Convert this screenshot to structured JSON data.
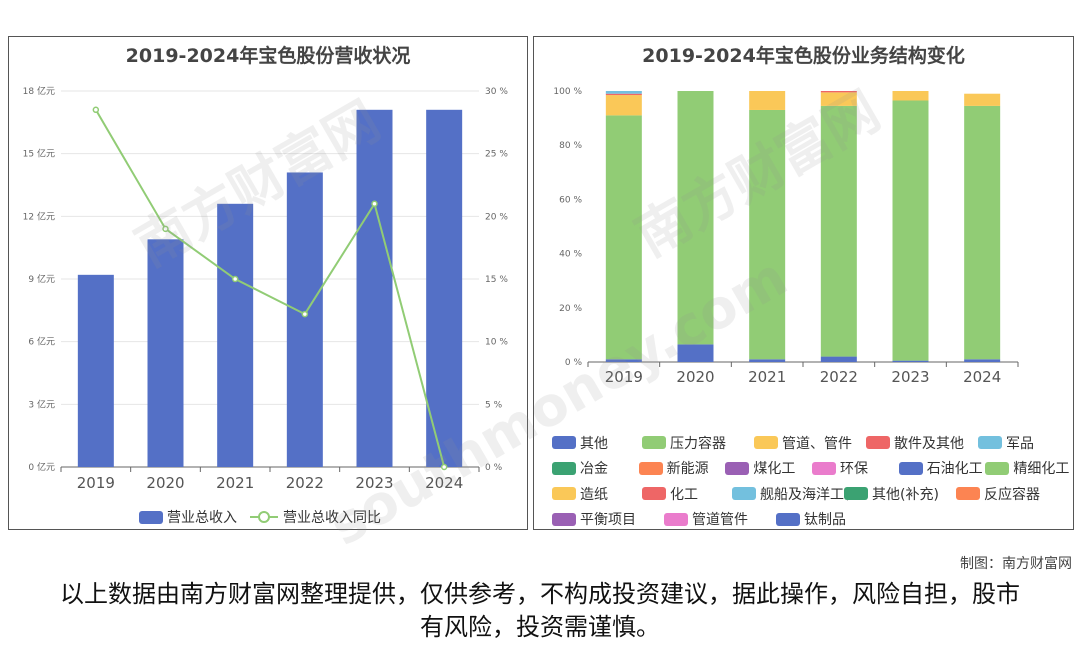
{
  "left_chart": {
    "title": "2019-2024年宝色股份营收状况",
    "legend": {
      "revenue": "营业总收入",
      "growth": "营业总收入同比"
    },
    "colors": {
      "bar": "#5470c6",
      "line": "#91cc75"
    }
  },
  "right_chart": {
    "title": "2019-2024年宝色股份业务结构变化",
    "legend_rows": [
      [
        {
          "name": "其他",
          "color": "#5470c6"
        },
        {
          "name": "压力容器",
          "color": "#91cc75",
          "w": 1
        },
        {
          "name": "管道、管件",
          "color": "#fac858",
          "w": 1
        },
        {
          "name": "散件及其他",
          "color": "#ee6666",
          "w": 1
        },
        {
          "name": "军品",
          "color": "#73c0de"
        }
      ],
      [
        {
          "name": "冶金",
          "color": "#3ba272"
        },
        {
          "name": "新能源",
          "color": "#fc8452"
        },
        {
          "name": "煤化工",
          "color": "#9a60b4"
        },
        {
          "name": "环保",
          "color": "#ea7ccc"
        },
        {
          "name": "石油化工",
          "color": "#5470c6"
        },
        {
          "name": "精细化工",
          "color": "#91cc75"
        }
      ],
      [
        {
          "name": "造纸",
          "color": "#fac858"
        },
        {
          "name": "化工",
          "color": "#ee6666"
        },
        {
          "name": "舰船及海洋工程",
          "color": "#73c0de",
          "w": 1
        },
        {
          "name": "其他(补充)",
          "color": "#3ba272",
          "w": 1
        },
        {
          "name": "反应容器",
          "color": "#fc8452"
        }
      ],
      [
        {
          "name": "平衡项目",
          "color": "#9a60b4",
          "w": 1
        },
        {
          "name": "管道管件",
          "color": "#ea7ccc",
          "w": 1
        },
        {
          "name": "钛制品",
          "color": "#5470c6"
        }
      ]
    ]
  },
  "credit": "制图：南方财富网",
  "footer": "以上数据由南方财富网整理提供，仅供参考，不构成投资建议，据此操作，风险自担，股市有风险，投资需谨慎。",
  "watermark": [
    "南方财富网",
    "southmoney.com"
  ],
  "chart_data": [
    {
      "type": "bar",
      "title": "2019-2024年宝色股份营收状况",
      "categories": [
        "2019",
        "2020",
        "2021",
        "2022",
        "2023",
        "2024"
      ],
      "series": [
        {
          "name": "营业总收入",
          "type": "bar",
          "axis": "left",
          "values": [
            9.2,
            10.9,
            12.6,
            14.1,
            17.1,
            17.1
          ]
        },
        {
          "name": "营业总收入同比",
          "type": "line",
          "axis": "right",
          "values": [
            28.5,
            19.0,
            15.0,
            12.2,
            21.0,
            0.0
          ]
        }
      ],
      "y_left": {
        "ticks": [
          0,
          3,
          6,
          9,
          12,
          15,
          18
        ],
        "unit": "亿元",
        "ylim": [
          0,
          18
        ]
      },
      "y_right": {
        "ticks": [
          0,
          5,
          10,
          15,
          20,
          25,
          30
        ],
        "unit": "%",
        "ylim": [
          0,
          30
        ]
      },
      "grid": true,
      "legend_position": "bottom"
    },
    {
      "type": "bar",
      "stacked": true,
      "title": "2019-2024年宝色股份业务结构变化",
      "categories": [
        "2019",
        "2020",
        "2021",
        "2022",
        "2023",
        "2024"
      ],
      "y_ticks": [
        0,
        20,
        40,
        60,
        80,
        100
      ],
      "y_unit": "%",
      "ylim": [
        0,
        100
      ],
      "series": [
        {
          "name": "其他",
          "color": "#5470c6",
          "values": [
            1,
            6.5,
            1,
            2,
            0.5,
            1
          ]
        },
        {
          "name": "压力容器",
          "color": "#91cc75",
          "values": [
            90,
            93.5,
            92,
            92.5,
            96,
            93.5
          ]
        },
        {
          "name": "管道、管件",
          "color": "#fac858",
          "values": [
            7.5,
            0,
            7,
            5,
            3.5,
            4.5
          ]
        },
        {
          "name": "散件及其他",
          "color": "#ee6666",
          "values": [
            0.5,
            0,
            0,
            0.5,
            0,
            0
          ]
        },
        {
          "name": "军品",
          "color": "#73c0de",
          "values": [
            1,
            0,
            0,
            0,
            0,
            0
          ]
        }
      ],
      "legend_position": "bottom"
    }
  ]
}
